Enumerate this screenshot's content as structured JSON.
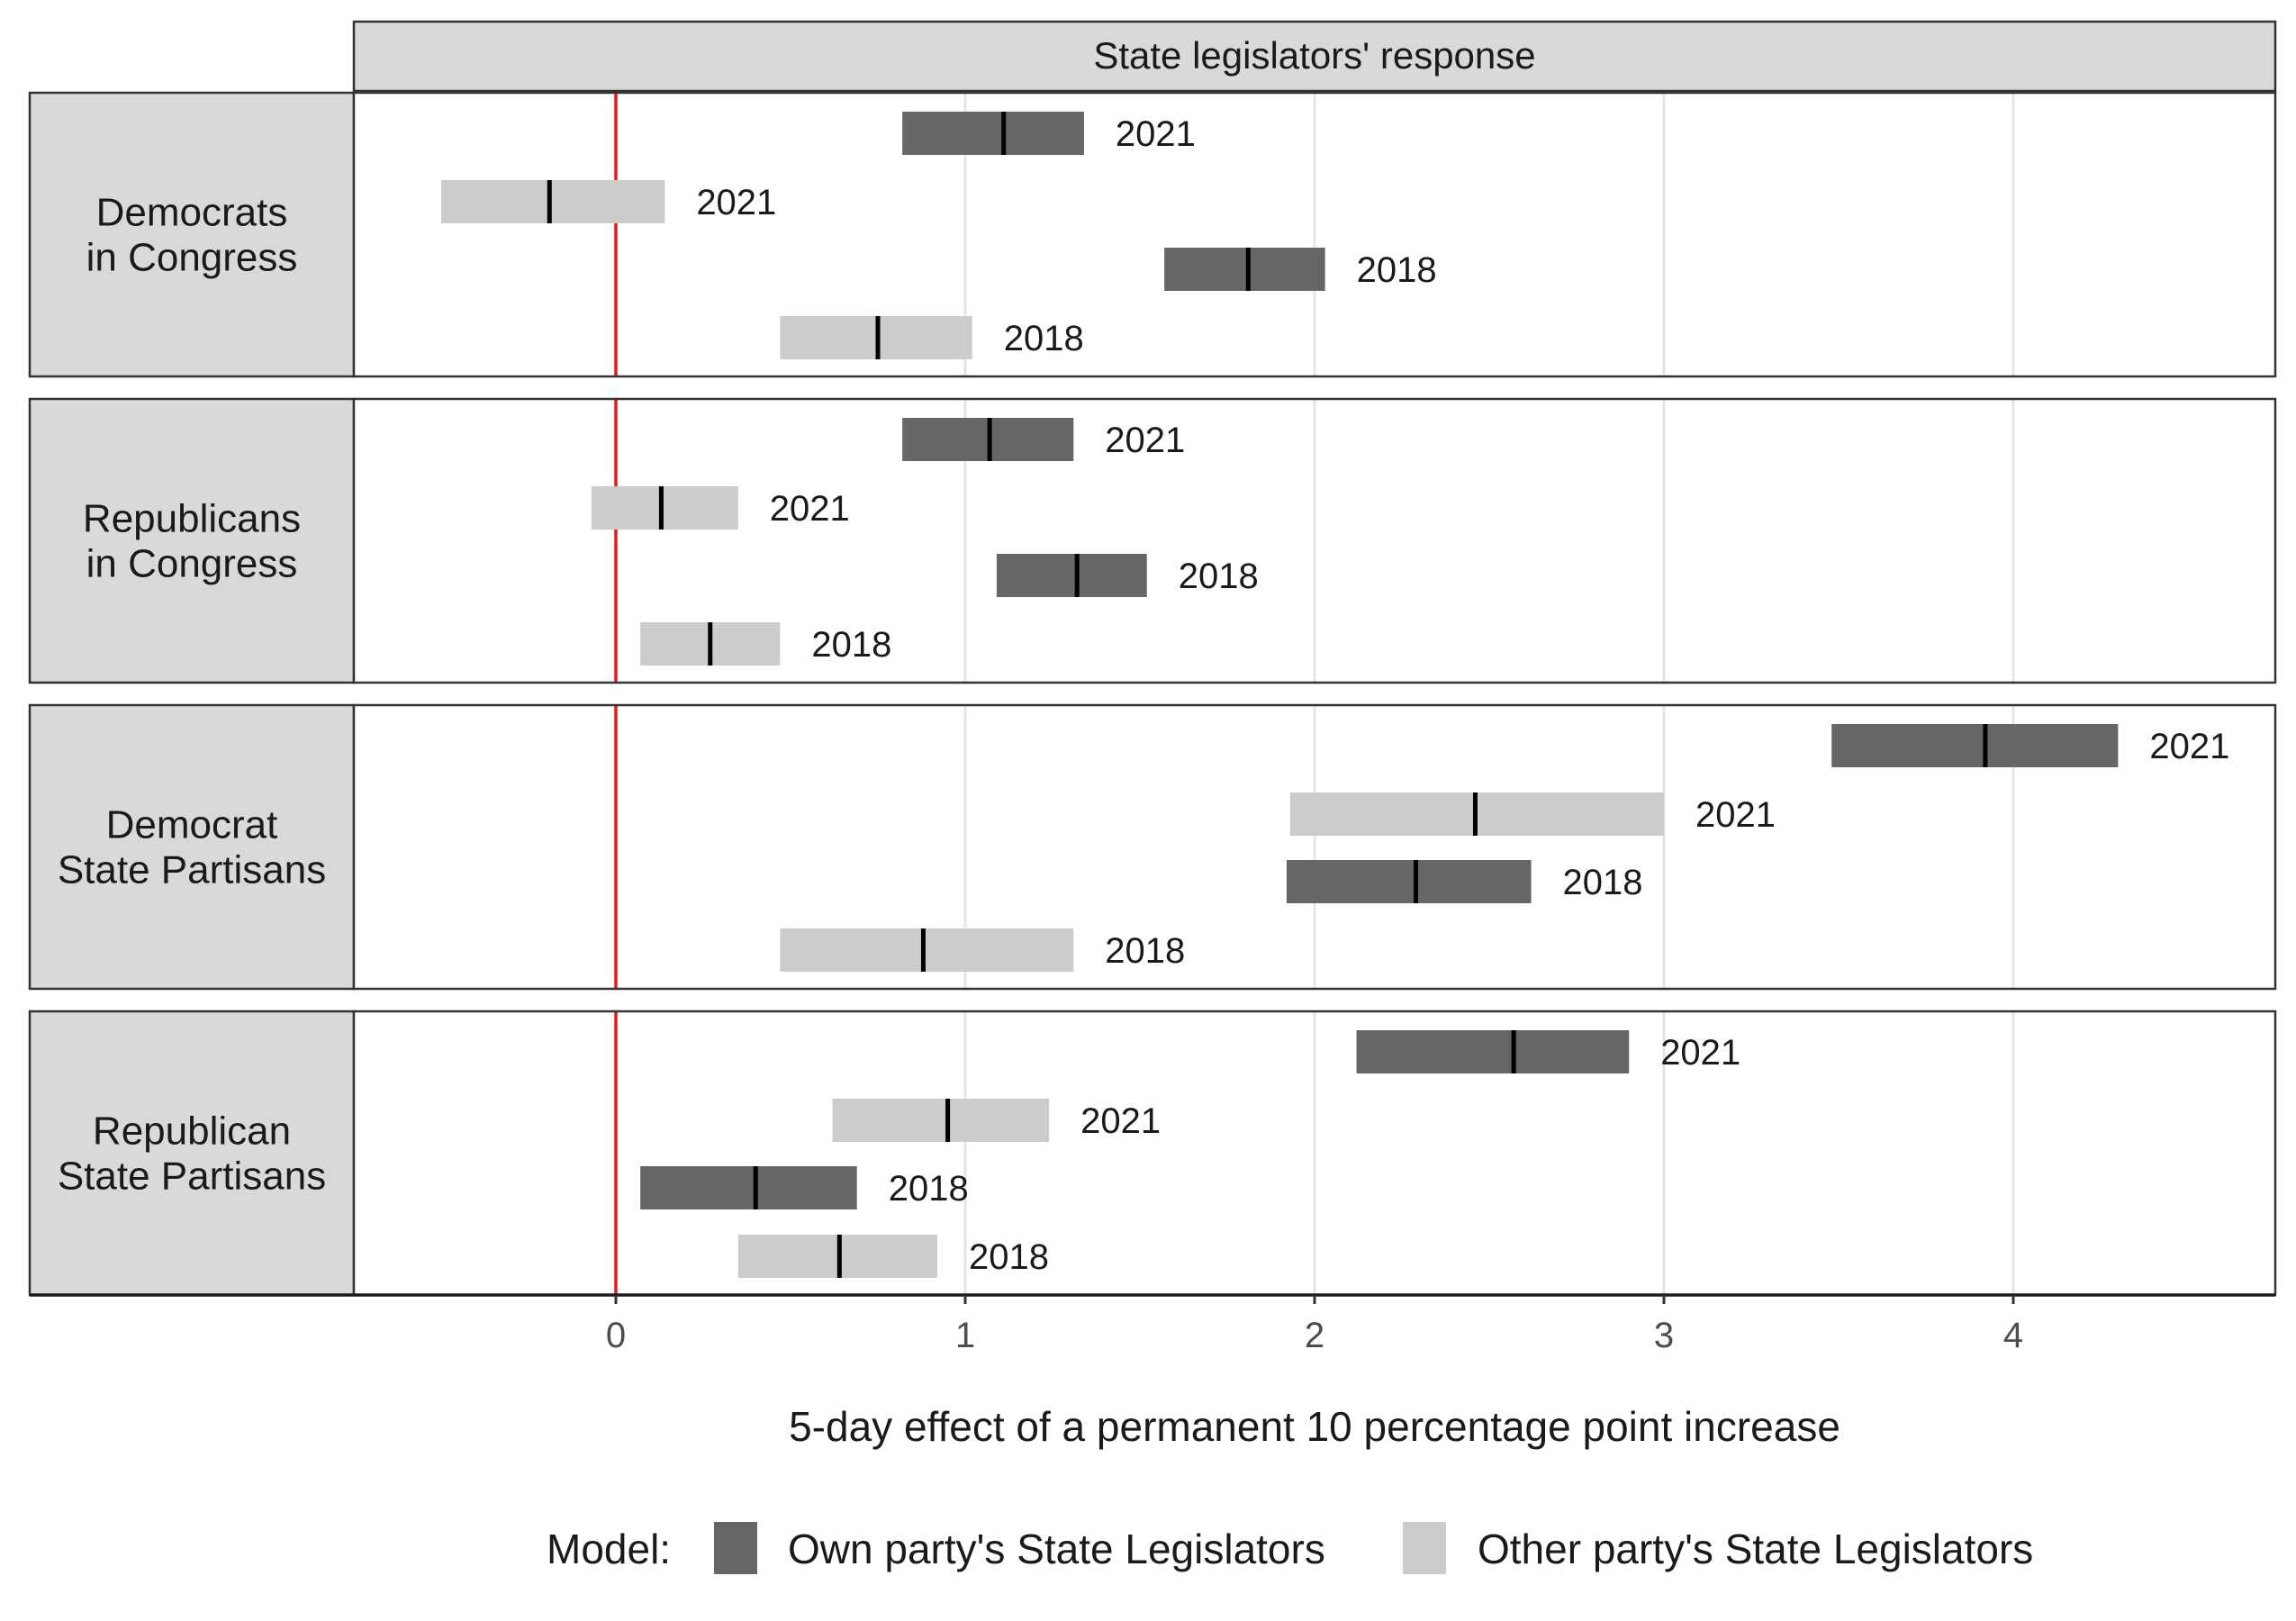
{
  "chart_data": {
    "type": "interval",
    "facet_title": "State legislators' response",
    "xlabel": "5-day effect of a permanent 10 percentage point increase",
    "xlim": [
      -0.75,
      4.75
    ],
    "x_ticks": [
      0,
      1,
      2,
      3,
      4
    ],
    "reference_line": {
      "x": 0,
      "color": "#e31a1c"
    },
    "grid": true,
    "legend": {
      "position": "bottom",
      "title": "Model:",
      "items": [
        {
          "key": "own",
          "label": "Own party's State Legislators",
          "color": "#666666"
        },
        {
          "key": "other",
          "label": "Other party's State Legislators",
          "color": "#cccccc"
        }
      ]
    },
    "panels": [
      {
        "label_lines": [
          "Democrats",
          "in Congress"
        ],
        "rows": [
          {
            "model": "own",
            "year": "2021",
            "low": 0.82,
            "estimate": 1.11,
            "high": 1.34
          },
          {
            "model": "other",
            "year": "2021",
            "low": -0.5,
            "estimate": -0.19,
            "high": 0.14
          },
          {
            "model": "own",
            "year": "2018",
            "low": 1.57,
            "estimate": 1.81,
            "high": 2.03
          },
          {
            "model": "other",
            "year": "2018",
            "low": 0.47,
            "estimate": 0.75,
            "high": 1.02
          }
        ]
      },
      {
        "label_lines": [
          "Republicans",
          "in Congress"
        ],
        "rows": [
          {
            "model": "own",
            "year": "2021",
            "low": 0.82,
            "estimate": 1.07,
            "high": 1.31
          },
          {
            "model": "other",
            "year": "2021",
            "low": -0.07,
            "estimate": 0.13,
            "high": 0.35
          },
          {
            "model": "own",
            "year": "2018",
            "low": 1.09,
            "estimate": 1.32,
            "high": 1.52
          },
          {
            "model": "other",
            "year": "2018",
            "low": 0.07,
            "estimate": 0.27,
            "high": 0.47
          }
        ]
      },
      {
        "label_lines": [
          "Democrat",
          "State Partisans"
        ],
        "rows": [
          {
            "model": "own",
            "year": "2021",
            "low": 3.48,
            "estimate": 3.92,
            "high": 4.3
          },
          {
            "model": "other",
            "year": "2021",
            "low": 1.93,
            "estimate": 2.46,
            "high": 3.0
          },
          {
            "model": "own",
            "year": "2018",
            "low": 1.92,
            "estimate": 2.29,
            "high": 2.62
          },
          {
            "model": "other",
            "year": "2018",
            "low": 0.47,
            "estimate": 0.88,
            "high": 1.31
          }
        ]
      },
      {
        "label_lines": [
          "Republican",
          "State Partisans"
        ],
        "rows": [
          {
            "model": "own",
            "year": "2021",
            "low": 2.12,
            "estimate": 2.57,
            "high": 2.9
          },
          {
            "model": "other",
            "year": "2021",
            "low": 0.62,
            "estimate": 0.95,
            "high": 1.24
          },
          {
            "model": "own",
            "year": "2018",
            "low": 0.07,
            "estimate": 0.4,
            "high": 0.69
          },
          {
            "model": "other",
            "year": "2018",
            "low": 0.35,
            "estimate": 0.64,
            "high": 0.92
          }
        ]
      }
    ]
  }
}
